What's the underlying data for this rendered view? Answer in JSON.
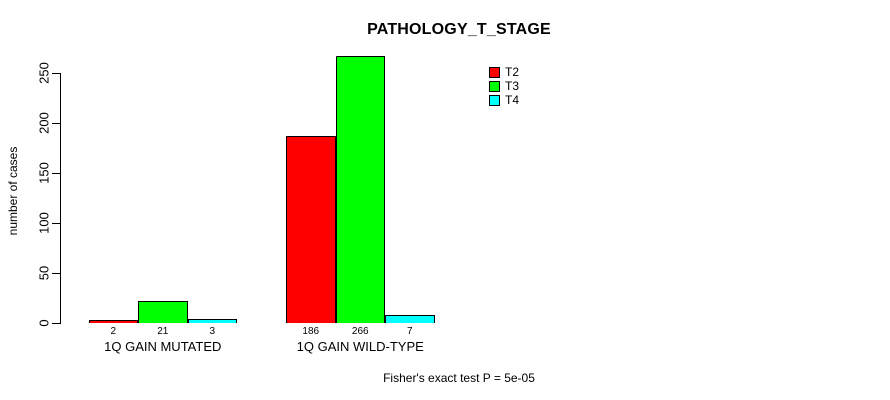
{
  "chart_data": {
    "type": "bar",
    "title": "PATHOLOGY_T_STAGE",
    "ylabel": "number of cases",
    "xlabel": "",
    "categories": [
      "1Q GAIN MUTATED",
      "1Q GAIN WILD-TYPE"
    ],
    "series": [
      {
        "name": "T2",
        "color": "#ff0000",
        "values": [
          2,
          186
        ]
      },
      {
        "name": "T3",
        "color": "#00ff00",
        "values": [
          21,
          266
        ]
      },
      {
        "name": "T4",
        "color": "#00ffff",
        "values": [
          3,
          7
        ]
      }
    ],
    "yticks": [
      0,
      50,
      100,
      150,
      200,
      250
    ],
    "ylim": [
      0,
      250
    ],
    "grid": false,
    "legend_position": "top-right",
    "bar_border_color": "#000000",
    "background_color": "#ffffff",
    "annotation": "Fisher's exact test P = 5e-05"
  }
}
